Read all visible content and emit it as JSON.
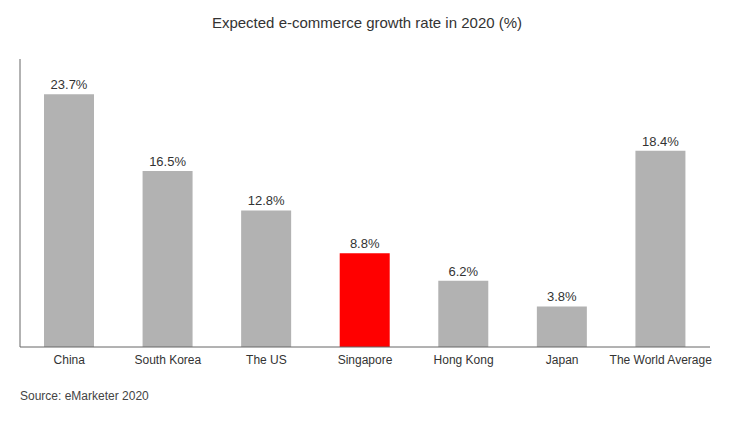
{
  "chart_data": {
    "type": "bar",
    "title": "Expected e-commerce growth rate in 2020 (%)",
    "categories": [
      "China",
      "South Korea",
      "The US",
      "Singapore",
      "Hong Kong",
      "Japan",
      "The World Average"
    ],
    "values": [
      23.7,
      16.5,
      12.8,
      8.8,
      6.2,
      3.8,
      18.4
    ],
    "value_labels": [
      "23.7%",
      "16.5%",
      "12.8%",
      "8.8%",
      "6.2%",
      "3.8%",
      "18.4%"
    ],
    "colors": [
      "#b2b2b2",
      "#b2b2b2",
      "#b2b2b2",
      "#ff0000",
      "#b2b2b2",
      "#b2b2b2",
      "#b2b2b2"
    ],
    "ylim": [
      0,
      27
    ],
    "data_labels": true,
    "tick_labels": "x",
    "grid": false,
    "source": "Source: eMarketer 2020"
  }
}
